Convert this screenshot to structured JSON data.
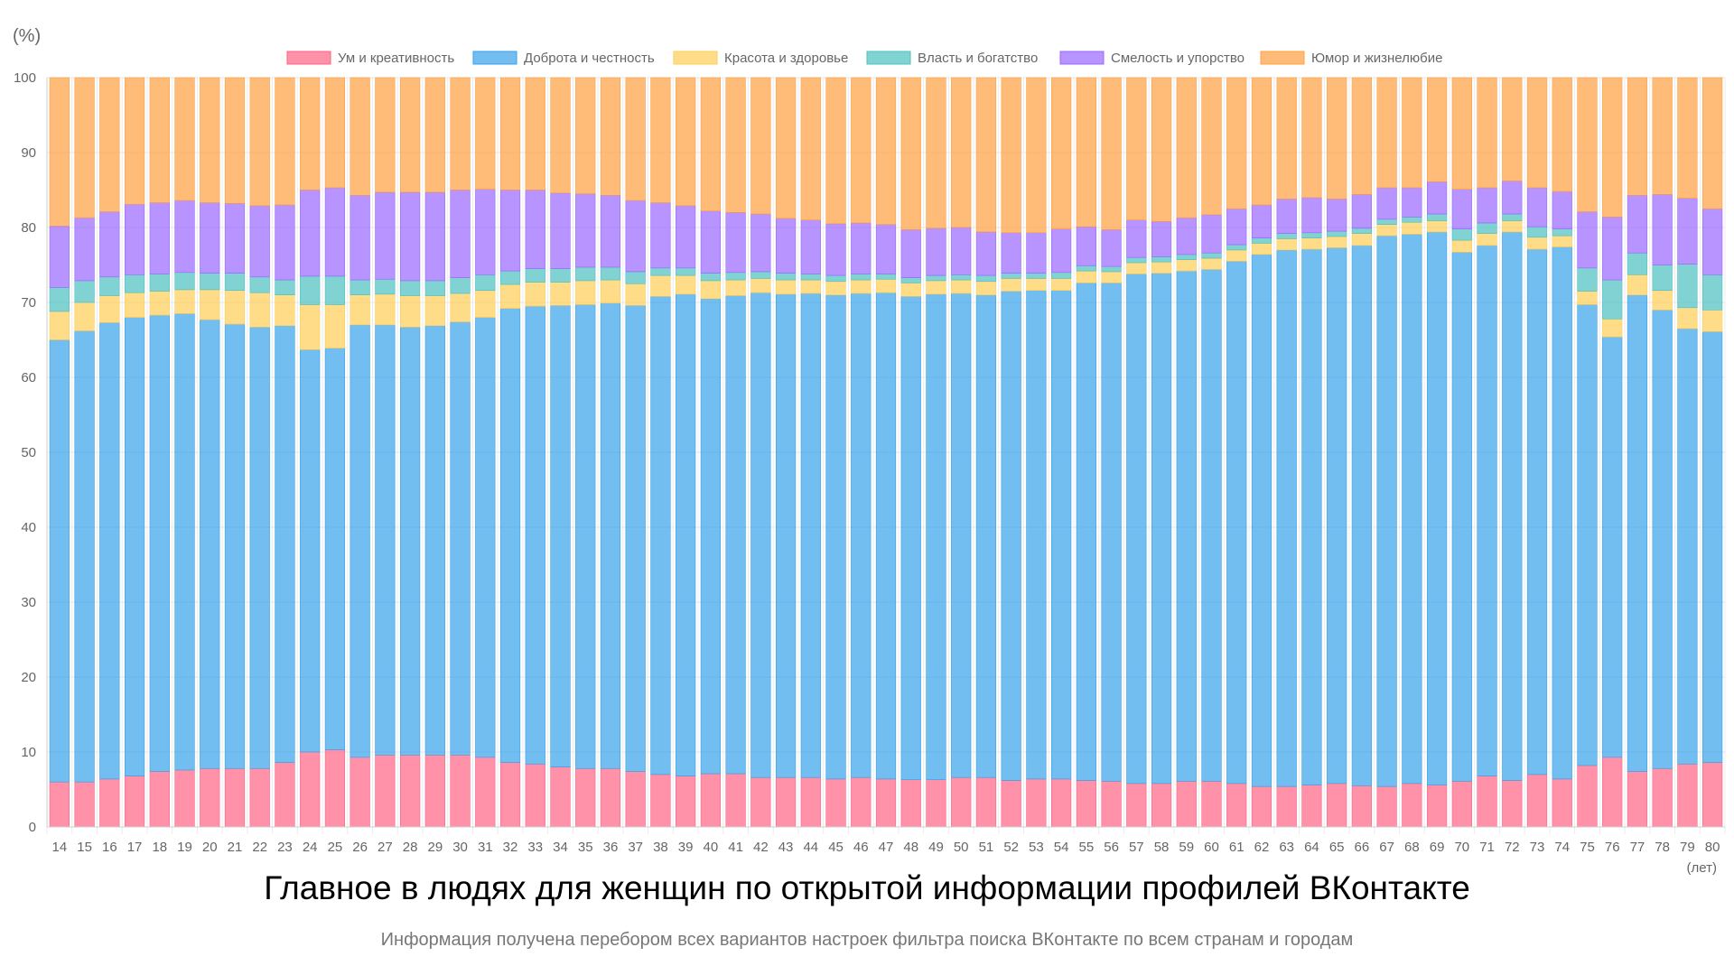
{
  "chart_data": {
    "type": "bar",
    "stacked": true,
    "title": "Главное в людях для женщин по открытой информации профилей ВКонтакте",
    "subtitle": "Информация получена перебором всех вариантов настроек фильтра поиска ВКонтакте по всем странам и городам",
    "ylabel": "(%)",
    "xlabel": "(лет)",
    "ylim": [
      0,
      100
    ],
    "yticks": [
      0,
      10,
      20,
      30,
      40,
      50,
      60,
      70,
      80,
      90,
      100
    ],
    "grid": true,
    "legend_position": "top",
    "categories": [
      "14",
      "15",
      "16",
      "17",
      "18",
      "19",
      "20",
      "21",
      "22",
      "23",
      "24",
      "25",
      "26",
      "27",
      "28",
      "29",
      "30",
      "31",
      "32",
      "33",
      "34",
      "35",
      "36",
      "37",
      "38",
      "39",
      "40",
      "41",
      "42",
      "43",
      "44",
      "45",
      "46",
      "47",
      "48",
      "49",
      "50",
      "51",
      "52",
      "53",
      "54",
      "55",
      "56",
      "57",
      "58",
      "59",
      "60",
      "61",
      "62",
      "63",
      "64",
      "65",
      "66",
      "67",
      "68",
      "69",
      "70",
      "71",
      "72",
      "73",
      "74",
      "75",
      "76",
      "77",
      "78",
      "79",
      "80"
    ],
    "series": [
      {
        "name": "Ум и креативность",
        "color": "#ff6384",
        "values": [
          6.0,
          6.0,
          6.4,
          6.8,
          7.4,
          7.6,
          7.8,
          7.8,
          7.8,
          8.6,
          10.0,
          10.3,
          9.3,
          9.6,
          9.6,
          9.6,
          9.6,
          9.3,
          8.6,
          8.4,
          8.0,
          7.8,
          7.8,
          7.4,
          7.0,
          6.8,
          7.1,
          7.1,
          6.6,
          6.6,
          6.6,
          6.4,
          6.6,
          6.4,
          6.3,
          6.3,
          6.6,
          6.6,
          6.2,
          6.4,
          6.4,
          6.2,
          6.1,
          5.8,
          5.8,
          6.1,
          6.1,
          5.8,
          5.4,
          5.4,
          5.6,
          5.8,
          5.5,
          5.4,
          5.8,
          5.6,
          6.1,
          6.8,
          6.2,
          7.0,
          6.4,
          8.2,
          9.3,
          7.4,
          7.8,
          8.4,
          8.6
        ]
      },
      {
        "name": "Доброта и честность",
        "color": "#36a2eb",
        "values": [
          59.0,
          60.2,
          60.9,
          61.2,
          60.9,
          60.9,
          59.9,
          59.3,
          58.9,
          58.3,
          53.7,
          53.6,
          57.7,
          57.4,
          57.1,
          57.3,
          57.8,
          58.7,
          60.6,
          61.1,
          61.6,
          61.9,
          62.1,
          62.2,
          63.8,
          64.3,
          63.4,
          63.8,
          64.7,
          64.5,
          64.6,
          64.6,
          64.6,
          64.9,
          64.5,
          64.8,
          64.6,
          64.4,
          65.3,
          65.2,
          65.2,
          66.4,
          66.5,
          68.0,
          68.1,
          68.1,
          68.3,
          69.7,
          71.0,
          71.6,
          71.5,
          71.5,
          72.1,
          73.5,
          73.3,
          73.8,
          70.6,
          70.8,
          73.2,
          70.1,
          71.0,
          61.5,
          56.1,
          63.6,
          61.2,
          58.1,
          57.5
        ]
      },
      {
        "name": "Красота и здоровье",
        "color": "#ffcd56",
        "values": [
          3.8,
          3.8,
          3.6,
          3.3,
          3.2,
          3.2,
          4.0,
          4.5,
          4.6,
          4.1,
          6.0,
          5.8,
          4.0,
          4.1,
          4.2,
          4.0,
          3.8,
          3.6,
          3.2,
          3.2,
          3.1,
          3.2,
          3.1,
          2.9,
          2.8,
          2.5,
          2.4,
          2.1,
          1.9,
          1.9,
          1.8,
          1.8,
          1.8,
          1.8,
          1.8,
          1.8,
          1.8,
          1.8,
          1.7,
          1.6,
          1.6,
          1.6,
          1.5,
          1.5,
          1.5,
          1.5,
          1.5,
          1.5,
          1.5,
          1.5,
          1.5,
          1.5,
          1.6,
          1.5,
          1.6,
          1.5,
          1.6,
          1.6,
          1.5,
          1.6,
          1.5,
          1.8,
          2.4,
          2.7,
          2.6,
          2.8,
          2.9
        ]
      },
      {
        "name": "Власть и богатство",
        "color": "#4bc0c0",
        "values": [
          3.2,
          2.9,
          2.5,
          2.4,
          2.3,
          2.3,
          2.2,
          2.3,
          2.1,
          2.0,
          3.8,
          3.8,
          2.0,
          2.0,
          2.0,
          2.0,
          2.1,
          2.1,
          1.8,
          1.8,
          1.8,
          1.8,
          1.7,
          1.6,
          1.0,
          1.0,
          1.0,
          1.0,
          0.9,
          0.9,
          0.8,
          0.8,
          0.8,
          0.7,
          0.7,
          0.7,
          0.7,
          0.8,
          0.7,
          0.7,
          0.8,
          0.7,
          0.7,
          0.7,
          0.7,
          0.7,
          0.7,
          0.7,
          0.7,
          0.7,
          0.7,
          0.7,
          0.7,
          0.7,
          0.7,
          0.9,
          1.5,
          1.4,
          0.9,
          1.4,
          0.9,
          3.1,
          5.2,
          2.9,
          3.4,
          5.8,
          4.7
        ]
      },
      {
        "name": "Смелость и упорство",
        "color": "#9966ff",
        "values": [
          8.2,
          8.4,
          8.7,
          9.4,
          9.5,
          9.6,
          9.4,
          9.3,
          9.5,
          10.0,
          11.5,
          11.8,
          11.3,
          11.6,
          11.8,
          11.8,
          11.7,
          11.4,
          10.8,
          10.5,
          10.1,
          9.8,
          9.6,
          9.5,
          8.7,
          8.3,
          8.3,
          8.0,
          7.7,
          7.3,
          7.2,
          6.9,
          6.8,
          6.6,
          6.4,
          6.3,
          6.3,
          5.8,
          5.4,
          5.4,
          5.8,
          5.2,
          4.9,
          5.0,
          4.7,
          4.9,
          5.1,
          4.8,
          4.4,
          4.6,
          4.7,
          4.3,
          4.5,
          4.2,
          3.9,
          4.3,
          5.3,
          4.7,
          4.4,
          5.2,
          5.0,
          7.5,
          8.4,
          7.7,
          9.4,
          8.8,
          8.8
        ]
      },
      {
        "name": "Юмор и жизнелюбие",
        "color": "#ff9f40",
        "values": [
          19.8,
          18.7,
          17.9,
          16.9,
          16.7,
          16.4,
          16.7,
          16.8,
          17.1,
          17.0,
          15.0,
          14.7,
          15.7,
          15.3,
          15.3,
          15.3,
          15.0,
          14.9,
          15.0,
          15.0,
          15.4,
          15.5,
          15.7,
          16.4,
          16.7,
          17.1,
          17.8,
          18.0,
          18.2,
          18.8,
          19.0,
          19.5,
          19.4,
          19.6,
          20.3,
          20.1,
          20.0,
          20.6,
          20.7,
          20.7,
          20.2,
          19.9,
          20.3,
          19.0,
          19.2,
          18.7,
          18.3,
          17.5,
          17.0,
          16.2,
          16.0,
          16.2,
          15.6,
          14.7,
          14.7,
          13.9,
          14.9,
          14.7,
          13.8,
          14.7,
          15.2,
          17.9,
          18.6,
          15.7,
          15.6,
          16.1,
          17.5
        ]
      }
    ]
  }
}
